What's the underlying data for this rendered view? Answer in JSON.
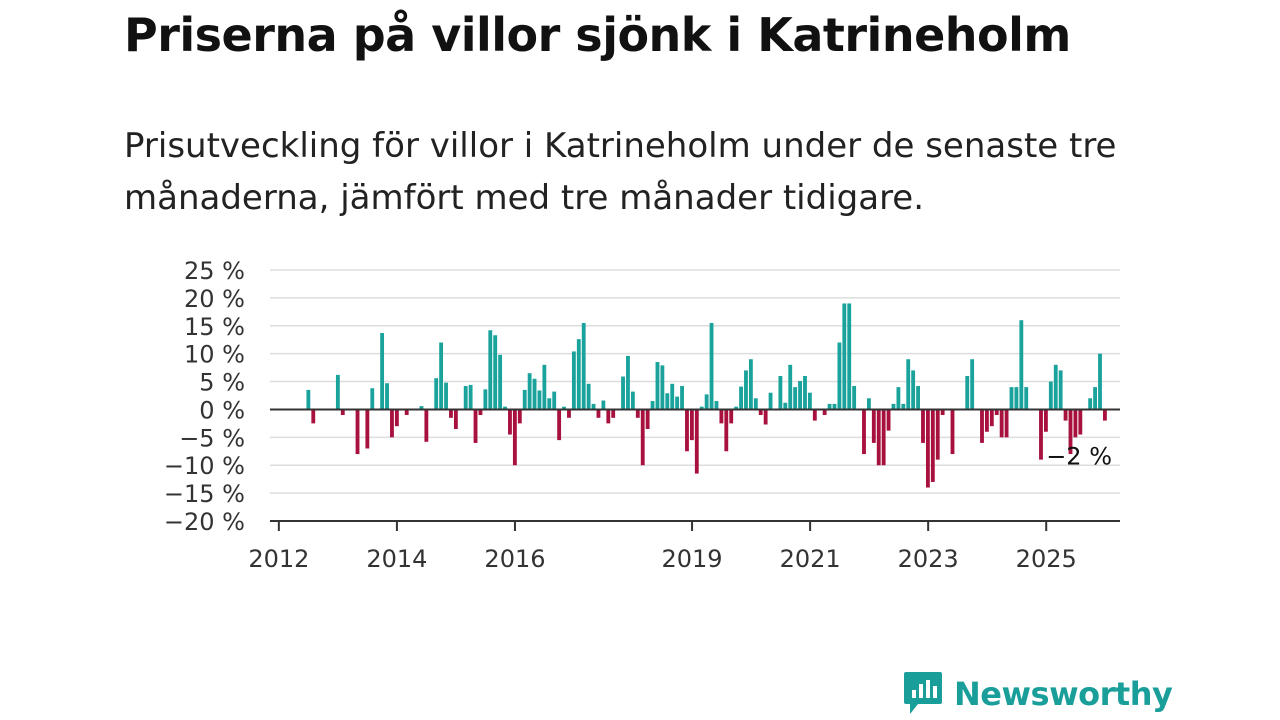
{
  "header": {
    "title": "Priserna på villor sjönk i Katrineholm",
    "subtitle": "Prisutveckling för villor i Katrineholm under de senaste tre månaderna, jämfört med tre månader tidigare."
  },
  "brand": {
    "name": "Newsworthy"
  },
  "colors": {
    "positive": "#1aa39c",
    "negative": "#a8103e",
    "zero_line": "#333333",
    "grid": "#dddddd",
    "brand": "#1a9e9a"
  },
  "chart_data": {
    "type": "bar",
    "x_start": 2012.0,
    "x_step_years": 0.0833,
    "x_tick_labels": [
      {
        "year": 2012,
        "label": "2012"
      },
      {
        "year": 2014,
        "label": "2014"
      },
      {
        "year": 2016,
        "label": "2016"
      },
      {
        "year": 2019,
        "label": "2019"
      },
      {
        "year": 2021,
        "label": "2021"
      },
      {
        "year": 2023,
        "label": "2023"
      },
      {
        "year": 2025,
        "label": "2025"
      }
    ],
    "y_ticks": [
      {
        "value": 25,
        "label": "25 %"
      },
      {
        "value": 20,
        "label": "20 %"
      },
      {
        "value": 15,
        "label": "15 %"
      },
      {
        "value": 10,
        "label": "10 %"
      },
      {
        "value": 5,
        "label": "5 %"
      },
      {
        "value": 0,
        "label": "0 %"
      },
      {
        "value": -5,
        "label": "−5 %"
      },
      {
        "value": -10,
        "label": "−10 %"
      },
      {
        "value": -15,
        "label": "−15 %"
      },
      {
        "value": -20,
        "label": "−20 %"
      }
    ],
    "ylim": [
      -20,
      25
    ],
    "xlim": [
      2011.85,
      2026.25
    ],
    "grid": true,
    "annotation": {
      "label": "−2 %",
      "value": -2
    },
    "values": [
      null,
      null,
      null,
      null,
      null,
      null,
      3.5,
      -2.5,
      null,
      null,
      null,
      null,
      6.2,
      -1.0,
      null,
      null,
      -8.0,
      null,
      -7.0,
      3.8,
      null,
      13.7,
      4.7,
      -5.0,
      -3.0,
      null,
      -1.0,
      null,
      null,
      0.6,
      -5.8,
      null,
      5.6,
      12.0,
      4.8,
      -1.5,
      -3.5,
      null,
      4.2,
      4.4,
      -6.0,
      -1.0,
      3.6,
      14.2,
      13.3,
      9.8,
      0.5,
      -4.5,
      -10.0,
      -2.5,
      3.5,
      6.5,
      5.5,
      3.4,
      8.0,
      2.0,
      3.2,
      -5.5,
      0.5,
      -1.5,
      10.4,
      12.6,
      15.5,
      4.6,
      1.0,
      -1.5,
      1.6,
      -2.5,
      -1.5,
      null,
      5.9,
      9.6,
      3.2,
      -1.5,
      -10.0,
      -3.5,
      1.5,
      8.5,
      7.9,
      2.9,
      4.6,
      2.3,
      4.2,
      -7.5,
      -5.5,
      -11.5,
      0.5,
      2.7,
      15.5,
      1.5,
      -2.5,
      -7.5,
      -2.5,
      0.5,
      4.1,
      7.0,
      9.0,
      2.0,
      -1.0,
      -2.7,
      3.0,
      null,
      6.0,
      1.2,
      8.0,
      4.0,
      5.1,
      6.0,
      3.0,
      -2.0,
      null,
      -1.0,
      1.0,
      1.0,
      12.0,
      19.0,
      19.0,
      4.2,
      null,
      -8.0,
      2.0,
      -6.0,
      -10.0,
      -10.0,
      -3.8,
      1.0,
      4.0,
      1.0,
      9.0,
      7.0,
      4.2,
      -6.0,
      -14.0,
      -13.0,
      -9.0,
      -1.0,
      null,
      -8.0,
      null,
      null,
      6.0,
      9.0,
      null,
      -6.0,
      -4.0,
      -3.0,
      -1.0,
      -5.0,
      -5.0,
      4.0,
      4.0,
      16.0,
      4.0,
      null,
      null,
      -9.0,
      -4.0,
      5.0,
      8.0,
      7.0,
      -2.0,
      -8.0,
      -5.0,
      -4.5,
      null,
      2.0,
      4.0,
      10.0,
      -2.0
    ]
  }
}
